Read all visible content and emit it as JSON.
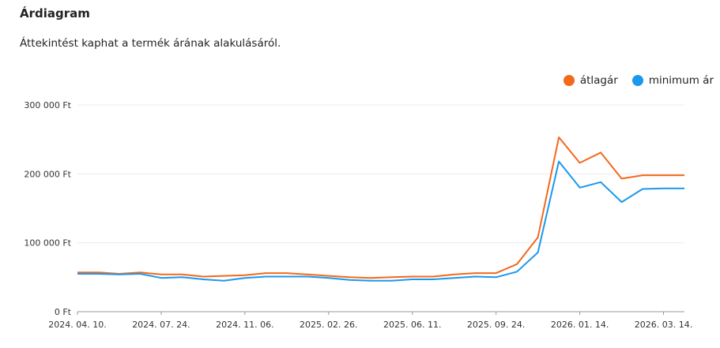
{
  "header": {
    "title": "Árdiagram",
    "subtitle": "Áttekintést kaphat a termék árának alakulásáról."
  },
  "chart_data": {
    "type": "line",
    "ylim": [
      0,
      300000
    ],
    "y_ticks": [
      {
        "value": 0,
        "label": "0 Ft"
      },
      {
        "value": 100000,
        "label": "100 000 Ft"
      },
      {
        "value": 200000,
        "label": "200 000 Ft"
      },
      {
        "value": 300000,
        "label": "300 000 Ft"
      }
    ],
    "x_tick_labels": [
      "2024. 04. 10.",
      "2024. 07. 24.",
      "2024. 11. 06.",
      "2025. 02. 26.",
      "2025. 06. 11.",
      "2025. 09. 24.",
      "2026. 01. 14.",
      "2026. 03. 14."
    ],
    "x_tick_positions": [
      0,
      4,
      8,
      12,
      16,
      20,
      24,
      28
    ],
    "x_count": 30,
    "grid": true,
    "legend_position": "top-right",
    "series": [
      {
        "name": "átlagár",
        "color": "#f2691c",
        "values": [
          57000,
          57000,
          55000,
          57000,
          54000,
          54000,
          51000,
          52000,
          53000,
          56000,
          56000,
          54000,
          52000,
          50000,
          49000,
          50000,
          51000,
          51000,
          54000,
          56000,
          56000,
          69000,
          108000,
          253000,
          216000,
          231000,
          193000,
          198000,
          198000,
          198000
        ]
      },
      {
        "name": "minimum ár",
        "color": "#1a98ee",
        "values": [
          55000,
          55000,
          54000,
          55000,
          49000,
          50000,
          47000,
          45000,
          49000,
          51000,
          51000,
          51000,
          49000,
          46000,
          45000,
          45000,
          47000,
          47000,
          49000,
          51000,
          50000,
          58000,
          86000,
          218000,
          180000,
          188000,
          159000,
          178000,
          179000,
          179000
        ]
      }
    ]
  }
}
